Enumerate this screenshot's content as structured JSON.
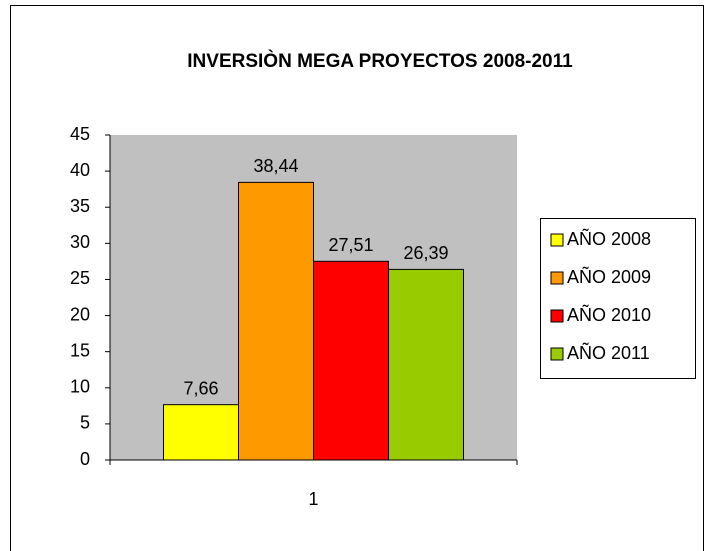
{
  "chart_data": {
    "type": "bar",
    "title": "INVERSIÒN MEGA PROYECTOS 2008-2011",
    "categories": [
      "1"
    ],
    "series": [
      {
        "name": "AÑO 2008",
        "color": "#ffff00",
        "values": [
          7.66
        ],
        "value_labels": [
          "7,66"
        ]
      },
      {
        "name": "AÑO 2009",
        "color": "#ff9900",
        "values": [
          38.44
        ],
        "value_labels": [
          "38,44"
        ]
      },
      {
        "name": "AÑO 2010",
        "color": "#ff0000",
        "values": [
          27.51
        ],
        "value_labels": [
          "27,51"
        ]
      },
      {
        "name": "AÑO 2011",
        "color": "#99cc00",
        "values": [
          26.39
        ],
        "value_labels": [
          "26,39"
        ]
      }
    ],
    "ylim": [
      0,
      45
    ],
    "yticks": [
      0,
      5,
      10,
      15,
      20,
      25,
      30,
      35,
      40,
      45
    ],
    "grid": false,
    "legend": "right"
  }
}
